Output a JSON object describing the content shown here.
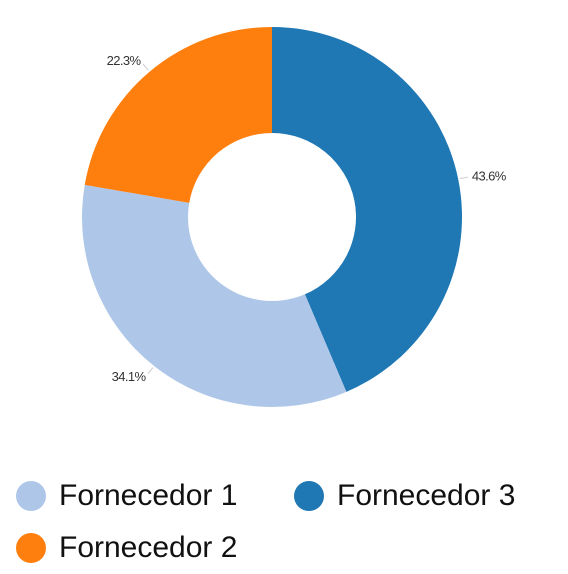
{
  "chart_data": {
    "type": "pie",
    "variant": "donut",
    "title": "",
    "start": "top",
    "direction": "clockwise",
    "slices": [
      {
        "name": "Fornecedor 3",
        "value": 43.6,
        "label": "43.6%",
        "color": "#1f77b4"
      },
      {
        "name": "Fornecedor 1",
        "value": 34.1,
        "label": "34.1%",
        "color": "#aec7e8"
      },
      {
        "name": "Fornecedor 2",
        "value": 22.3,
        "label": "22.3%",
        "color": "#ff7f0e"
      }
    ],
    "legend": {
      "placement": "bottom",
      "items": [
        {
          "label": "Fornecedor 1",
          "color": "#aec7e8"
        },
        {
          "label": "Fornecedor 3",
          "color": "#1f77b4"
        },
        {
          "label": "Fornecedor 2",
          "color": "#ff7f0e"
        }
      ]
    }
  }
}
